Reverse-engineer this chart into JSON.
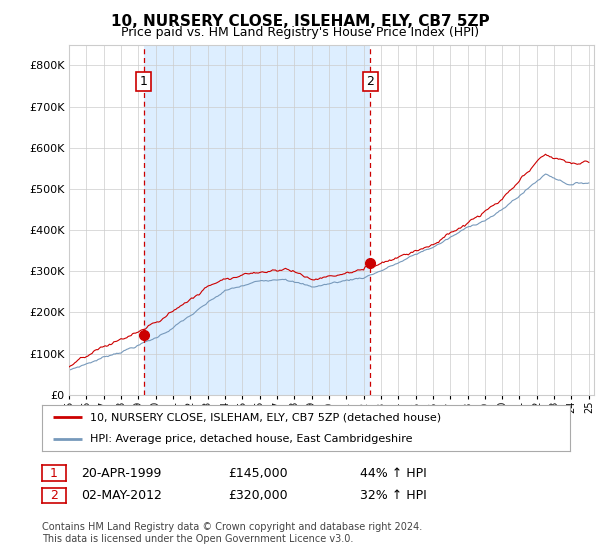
{
  "title": "10, NURSERY CLOSE, ISLEHAM, ELY, CB7 5ZP",
  "subtitle": "Price paid vs. HM Land Registry's House Price Index (HPI)",
  "red_label": "10, NURSERY CLOSE, ISLEHAM, ELY, CB7 5ZP (detached house)",
  "blue_label": "HPI: Average price, detached house, East Cambridgeshire",
  "sale1_date": "20-APR-1999",
  "sale1_price": "£145,000",
  "sale1_hpi": "44% ↑ HPI",
  "sale2_date": "02-MAY-2012",
  "sale2_price": "£320,000",
  "sale2_hpi": "32% ↑ HPI",
  "footer": "Contains HM Land Registry data © Crown copyright and database right 2024.\nThis data is licensed under the Open Government Licence v3.0.",
  "ylim": [
    0,
    850000
  ],
  "yticks": [
    0,
    100000,
    200000,
    300000,
    400000,
    500000,
    600000,
    700000,
    800000
  ],
  "red_color": "#cc0000",
  "blue_color": "#7799bb",
  "shade_color": "#ddeeff",
  "dashed_vline_color": "#cc0000",
  "background_color": "#ffffff",
  "grid_color": "#cccccc",
  "sale1_x": 1999.3,
  "sale1_y": 145000,
  "sale2_x": 2012.4,
  "sale2_y": 320000,
  "xlim_start": 1995,
  "xlim_end": 2025.3
}
